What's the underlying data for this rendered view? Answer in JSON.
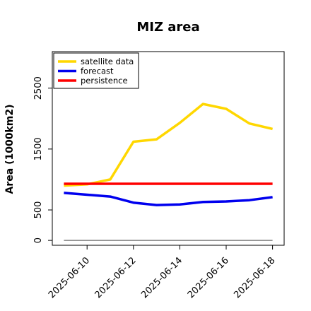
{
  "chart_data": {
    "type": "line",
    "title": "MIZ area",
    "xlabel": "",
    "ylabel": "Area (1000km2)",
    "x": [
      "2025-06-09",
      "2025-06-10",
      "2025-06-11",
      "2025-06-12",
      "2025-06-13",
      "2025-06-14",
      "2025-06-15",
      "2025-06-16",
      "2025-06-17",
      "2025-06-18"
    ],
    "x_ticks": [
      {
        "date": "2025-06-10",
        "label": "2025-06-10",
        "color": "#2e8b2e"
      },
      {
        "date": "2025-06-12",
        "label": "2025-06-12",
        "color": "#000000"
      },
      {
        "date": "2025-06-14",
        "label": "2025-06-14",
        "color": "#000000"
      },
      {
        "date": "2025-06-16",
        "label": "2025-06-16",
        "color": "#000000"
      },
      {
        "date": "2025-06-18",
        "label": "2025-06-18",
        "color": "#000000"
      }
    ],
    "xlim": [
      "2025-06-08T12:00",
      "2025-06-18T12:00"
    ],
    "y_ticks": [
      0,
      500,
      1500,
      2500
    ],
    "ylim": [
      -80,
      3100
    ],
    "series": [
      {
        "name": "satellite data",
        "color": "#FFD700",
        "values": [
          900,
          920,
          1000,
          1620,
          1660,
          1930,
          2240,
          2160,
          1920,
          1830
        ]
      },
      {
        "name": "forecast",
        "color": "#0000EE",
        "values": [
          780,
          750,
          720,
          620,
          580,
          590,
          630,
          640,
          660,
          710
        ]
      },
      {
        "name": "persistence",
        "color": "#FF0000",
        "values": [
          930,
          930,
          930,
          930,
          930,
          930,
          930,
          930,
          930,
          930
        ]
      }
    ],
    "baseline": {
      "value": 0,
      "color": "#808080"
    },
    "legend": "top-left",
    "grid": false
  }
}
